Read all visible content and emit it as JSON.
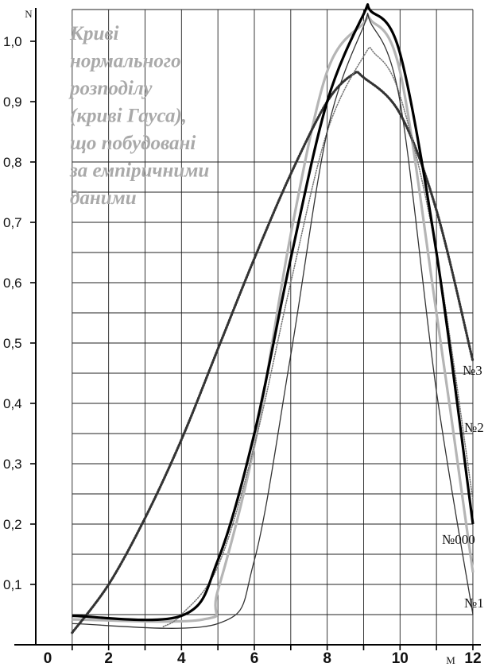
{
  "chart_data": {
    "type": "line",
    "title_lines": [
      "Криві",
      "нормального",
      "розподілу",
      "(криві Гауса),",
      "що побудовані",
      "за емпіричними",
      "даними"
    ],
    "xlabel": "M",
    "ylabel": "N",
    "xlim": [
      0,
      12
    ],
    "ylim": [
      0,
      1.05
    ],
    "x_ticks": [
      "0",
      "2",
      "4",
      "6",
      "8",
      "10",
      "12"
    ],
    "y_ticks": [
      "0,1",
      "0,2",
      "0,3",
      "0,4",
      "0,5",
      "0,6",
      "0,7",
      "0,8",
      "0,9",
      "1,0"
    ],
    "grid": true,
    "series": [
      {
        "name": "№3",
        "style": "dotted-thick",
        "color": "#333333",
        "x": [
          1,
          2,
          3,
          4,
          5,
          6,
          7,
          8,
          8.7,
          9,
          10,
          11,
          12
        ],
        "y": [
          0.02,
          0.1,
          0.21,
          0.34,
          0.49,
          0.64,
          0.78,
          0.9,
          0.945,
          0.94,
          0.88,
          0.72,
          0.47
        ]
      },
      {
        "name": "№2",
        "style": "dotted",
        "color": "#777777",
        "x": [
          3.5,
          4,
          5,
          6,
          7,
          8,
          9,
          9.3,
          10,
          11,
          12
        ],
        "y": [
          0.03,
          0.05,
          0.13,
          0.33,
          0.6,
          0.85,
          0.975,
          0.98,
          0.91,
          0.65,
          0.24
        ]
      },
      {
        "name": "№000",
        "style": "solid-thick",
        "color": "#000000",
        "x": [
          1,
          4,
          5,
          6,
          7,
          8,
          9,
          9.2,
          10,
          11,
          12
        ],
        "y": [
          0.048,
          0.048,
          0.14,
          0.35,
          0.64,
          0.9,
          1.045,
          1.05,
          0.98,
          0.65,
          0.2
        ]
      },
      {
        "name": "№1",
        "style": "solid",
        "color": "#333333",
        "x": [
          1,
          5,
          6,
          7,
          8,
          9,
          9.2,
          10,
          11,
          12
        ],
        "y": [
          0.035,
          0.035,
          0.14,
          0.48,
          0.85,
          1.025,
          1.03,
          0.9,
          0.42,
          0.05
        ]
      },
      {
        "name": "",
        "style": "solid-gray",
        "color": "#b5b5b5",
        "x": [
          1,
          4.6,
          5,
          6,
          7,
          8,
          9,
          9.2,
          10,
          11,
          12
        ],
        "y": [
          0.042,
          0.042,
          0.09,
          0.33,
          0.68,
          0.95,
          1.03,
          1.035,
          0.95,
          0.55,
          0.12
        ]
      }
    ],
    "curve_labels": [
      "№3",
      "№2",
      "№000",
      "№1"
    ]
  }
}
